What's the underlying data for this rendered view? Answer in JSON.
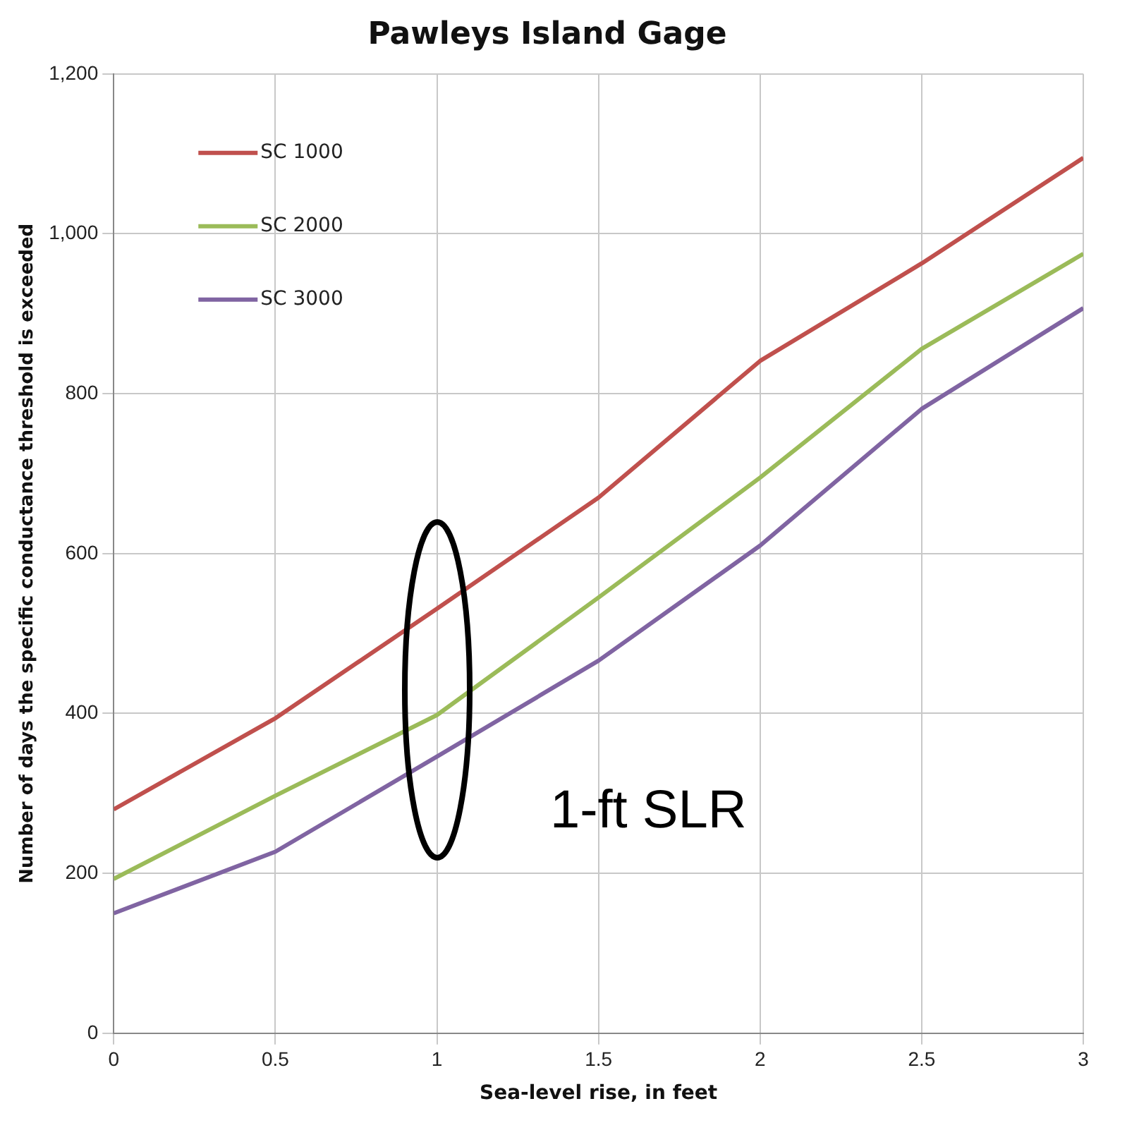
{
  "chart_data": {
    "type": "line",
    "title": "Pawleys Island Gage",
    "xlabel": "Sea-level rise, in feet",
    "ylabel": "Number of days the specific conductance threshold is exceeded",
    "x": [
      0,
      0.5,
      1,
      1.5,
      2,
      2.5,
      3
    ],
    "series": [
      {
        "name": "SC 1000",
        "color": "#c0504d",
        "values": [
          280,
          394,
          531,
          670,
          841,
          963,
          1095
        ]
      },
      {
        "name": "SC 2000",
        "color": "#9bbb59",
        "values": [
          193,
          297,
          398,
          545,
          695,
          856,
          975
        ]
      },
      {
        "name": "SC 3000",
        "color": "#8064a2",
        "values": [
          150,
          227,
          346,
          466,
          610,
          781,
          907
        ]
      }
    ],
    "xlim": [
      0,
      3
    ],
    "xticks": [
      0,
      0.5,
      1,
      1.5,
      2,
      2.5,
      3
    ],
    "ylim": [
      0,
      1200
    ],
    "yticks": [
      0,
      200,
      400,
      600,
      800,
      {
        "value": 1000,
        "label": "1,000"
      },
      {
        "value": 1200,
        "label": "1,200"
      }
    ],
    "grid": true,
    "legend": "top left",
    "marker": "none",
    "line_style": "solid",
    "annotations": [
      "1-ft SLR"
    ]
  }
}
